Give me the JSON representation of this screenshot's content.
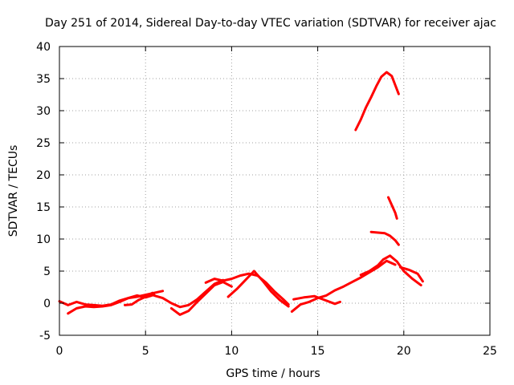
{
  "chart_data": {
    "type": "line",
    "title": "Day 251 of 2014, Sidereal Day-to-day VTEC variation (SDTVAR) for receiver ajac",
    "xlabel": "GPS time / hours",
    "ylabel": "SDTVAR / TECUs",
    "xlim": [
      0,
      25
    ],
    "ylim": [
      -5,
      40
    ],
    "xticks": [
      0,
      5,
      10,
      15,
      20,
      25
    ],
    "yticks": [
      -5,
      0,
      5,
      10,
      15,
      20,
      25,
      30,
      35,
      40
    ],
    "grid": true,
    "legend": "none",
    "color": "#ff0000",
    "series": [
      {
        "name": "satellite-track-1",
        "x": [
          0.0,
          0.5,
          1.0,
          1.5,
          2.0,
          2.5,
          3.0,
          3.5,
          4.0,
          4.5,
          5.0,
          5.5,
          6.0
        ],
        "y": [
          0.3,
          -0.3,
          0.2,
          -0.2,
          -0.3,
          -0.4,
          -0.2,
          0.4,
          0.8,
          1.0,
          1.3,
          1.6,
          1.9
        ]
      },
      {
        "name": "satellite-track-2",
        "x": [
          0.5,
          1.0,
          1.5,
          2.0,
          2.5,
          3.0,
          3.5,
          4.0,
          4.5,
          5.0,
          5.5
        ],
        "y": [
          -1.6,
          -0.8,
          -0.5,
          -0.6,
          -0.5,
          -0.3,
          0.2,
          0.8,
          1.2,
          0.9,
          1.3
        ]
      },
      {
        "name": "satellite-track-3",
        "x": [
          3.8,
          4.2,
          4.6,
          5.0,
          5.4
        ],
        "y": [
          -0.3,
          -0.2,
          0.5,
          1.0,
          1.6
        ]
      },
      {
        "name": "satellite-track-4",
        "x": [
          5.5,
          6.0,
          6.5,
          7.0,
          7.5,
          8.0,
          8.5,
          9.0,
          9.5
        ],
        "y": [
          1.2,
          0.8,
          0.0,
          -0.6,
          -0.3,
          0.6,
          1.8,
          3.0,
          3.6
        ]
      },
      {
        "name": "satellite-track-5",
        "x": [
          6.5,
          7.0,
          7.5,
          8.0,
          8.5,
          9.0,
          9.5,
          10.0
        ],
        "y": [
          -0.8,
          -1.8,
          -1.2,
          0.2,
          1.5,
          2.8,
          3.3,
          2.6
        ]
      },
      {
        "name": "satellite-track-6",
        "x": [
          8.5,
          9.0,
          9.5,
          10.0,
          10.5,
          11.0,
          11.5,
          12.0,
          12.5,
          13.0,
          13.3
        ],
        "y": [
          3.2,
          3.8,
          3.5,
          3.8,
          4.3,
          4.6,
          4.3,
          3.2,
          1.8,
          0.6,
          -0.2
        ]
      },
      {
        "name": "satellite-track-7",
        "x": [
          9.8,
          10.3,
          10.8,
          11.3,
          11.8,
          12.3,
          12.8,
          13.3
        ],
        "y": [
          1.0,
          2.2,
          3.6,
          5.0,
          3.5,
          1.8,
          0.5,
          -0.5
        ]
      },
      {
        "name": "satellite-track-8",
        "x": [
          13.5,
          14.0,
          14.5,
          15.0,
          15.5,
          16.0,
          16.5,
          17.0,
          17.5,
          18.0,
          18.5,
          19.0,
          19.5
        ],
        "y": [
          -1.3,
          -0.2,
          0.2,
          0.8,
          1.2,
          2.0,
          2.6,
          3.3,
          4.0,
          4.8,
          5.6,
          6.6,
          6.0
        ]
      },
      {
        "name": "satellite-track-9",
        "x": [
          13.6,
          14.2,
          14.8,
          15.4,
          16.0,
          16.3
        ],
        "y": [
          0.6,
          0.9,
          1.1,
          0.5,
          -0.1,
          0.2
        ]
      },
      {
        "name": "satellite-track-10",
        "x": [
          17.5,
          18.0,
          18.5,
          18.8,
          19.2,
          19.6,
          20.0,
          20.5,
          21.0
        ],
        "y": [
          4.4,
          5.0,
          5.9,
          6.8,
          7.4,
          6.5,
          5.0,
          3.8,
          2.8
        ]
      },
      {
        "name": "satellite-track-11",
        "x": [
          19.8,
          20.3,
          20.8,
          21.1
        ],
        "y": [
          5.6,
          5.2,
          4.6,
          3.4
        ]
      },
      {
        "name": "satellite-track-12",
        "x": [
          17.2,
          17.5,
          17.8,
          18.1,
          18.4,
          18.7,
          19.0,
          19.3,
          19.5,
          19.7
        ],
        "y": [
          27.0,
          28.6,
          30.5,
          32.1,
          33.8,
          35.3,
          36.0,
          35.4,
          34.0,
          32.6
        ]
      },
      {
        "name": "satellite-track-13",
        "x": [
          19.1,
          19.3,
          19.5,
          19.6
        ],
        "y": [
          16.5,
          15.3,
          14.1,
          13.2
        ]
      },
      {
        "name": "satellite-track-14",
        "x": [
          18.1,
          18.5,
          18.9,
          19.2,
          19.5,
          19.7
        ],
        "y": [
          11.1,
          11.0,
          10.9,
          10.5,
          9.8,
          9.1
        ]
      }
    ]
  }
}
